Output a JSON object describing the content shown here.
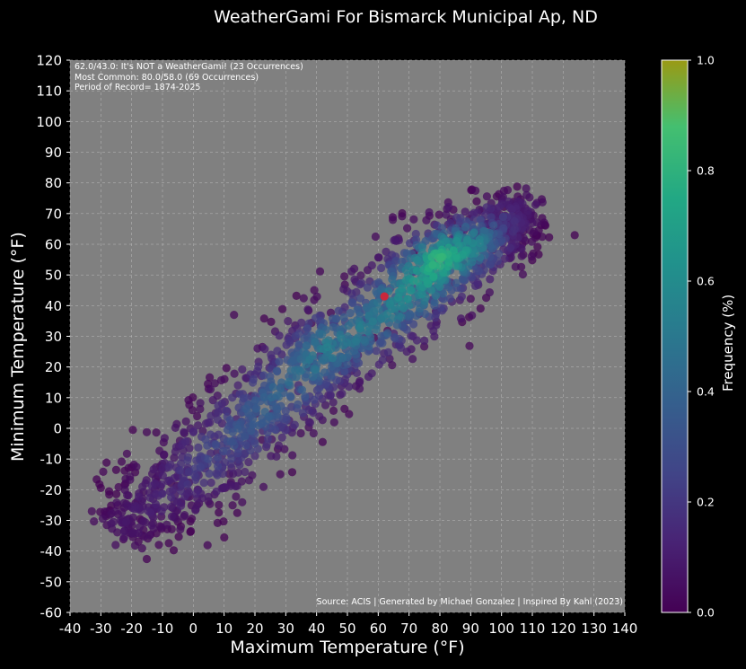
{
  "chart_data": {
    "type": "scatter",
    "title": "WeatherGami For Bismarck Municipal Ap, ND",
    "xlabel": "Maximum Temperature (°F)",
    "ylabel": "Minimum Temperature (°F)",
    "xlim": [
      -40,
      140
    ],
    "ylim": [
      -60,
      120
    ],
    "x_ticks": [
      "-40",
      "-30",
      "-20",
      "-10",
      "0",
      "10",
      "20",
      "30",
      "40",
      "50",
      "60",
      "70",
      "80",
      "90",
      "100",
      "110",
      "120",
      "130",
      "140"
    ],
    "y_ticks": [
      "-60",
      "-50",
      "-40",
      "-30",
      "-20",
      "-10",
      "0",
      "10",
      "20",
      "30",
      "40",
      "50",
      "60",
      "70",
      "80",
      "90",
      "100",
      "110",
      "120"
    ],
    "grid": true,
    "background_color": "#808080",
    "colormap": "viridis",
    "colorbar": {
      "label": "Frequency (%)",
      "ticks": [
        "0.0",
        "0.2",
        "0.4",
        "0.6",
        "0.8",
        "1.0"
      ],
      "range": [
        0,
        1
      ]
    },
    "density_ridge": [
      {
        "x": -25,
        "y": -33,
        "spread": 6,
        "density": 0.05
      },
      {
        "x": -10,
        "y": -22,
        "spread": 7,
        "density": 0.12
      },
      {
        "x": 5,
        "y": -10,
        "spread": 8,
        "density": 0.25
      },
      {
        "x": 20,
        "y": 4,
        "spread": 8,
        "density": 0.38
      },
      {
        "x": 35,
        "y": 18,
        "spread": 8,
        "density": 0.45
      },
      {
        "x": 45,
        "y": 27,
        "spread": 8,
        "density": 0.55
      },
      {
        "x": 60,
        "y": 36,
        "spread": 8,
        "density": 0.5
      },
      {
        "x": 72,
        "y": 46,
        "spread": 8,
        "density": 0.65
      },
      {
        "x": 80,
        "y": 55,
        "spread": 7,
        "density": 0.85
      },
      {
        "x": 90,
        "y": 60,
        "spread": 7,
        "density": 0.6
      },
      {
        "x": 100,
        "y": 66,
        "spread": 6,
        "density": 0.2
      },
      {
        "x": 108,
        "y": 72,
        "spread": 4,
        "density": 0.04
      }
    ],
    "highlighted_point": {
      "x": 62.0,
      "y": 43.0,
      "color": "#c8283c"
    },
    "most_common_point": {
      "x": 80.0,
      "y": 58.0
    },
    "annotations": [
      "62.0/43.0: It's NOT a WeatherGami! (23 Occurrences)",
      "Most Common: 80.0/58.0 (69 Occurrences)",
      "Period of Record= 1874-2025"
    ],
    "source": "Source: ACIS | Generated by Michael Gonzalez | Inspired By Kahl (2023)"
  }
}
